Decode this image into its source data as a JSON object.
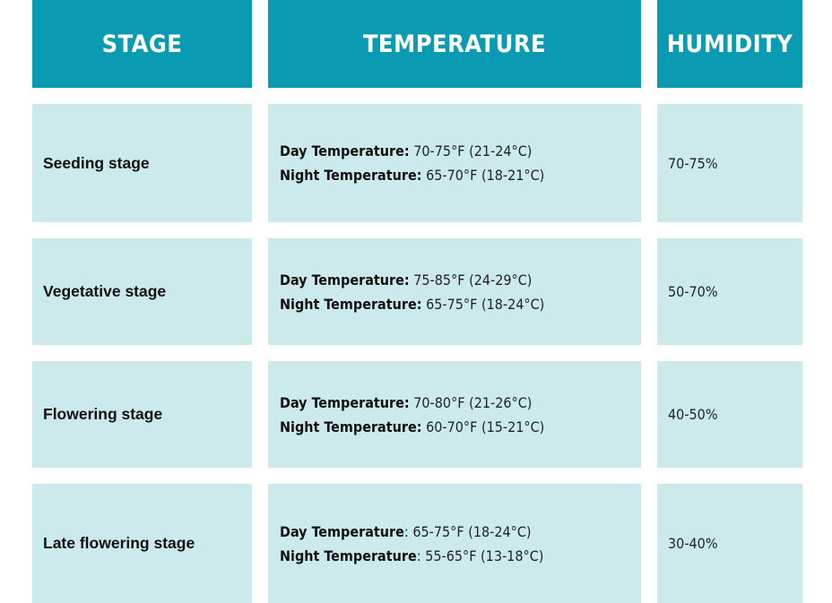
{
  "headers": {
    "stage": "STAGE",
    "temperature": "TEMPERATURE",
    "humidity": "HUMIDITY"
  },
  "rows": [
    {
      "stage": "Seeding stage",
      "day_label": "Day Temperature:",
      "day_value": " 70-75°F (21-24°C)",
      "night_label": "Night Temperature:",
      "night_value": " 65-70°F (18-21°C)",
      "humidity": "70-75%"
    },
    {
      "stage": "Vegetative stage",
      "day_label": "Day Temperature:",
      "day_value": " 75-85°F (24-29°C)",
      "night_label": "Night Temperature:",
      "night_value": " 65-75°F (18-24°C)",
      "humidity": "50-70%"
    },
    {
      "stage": "Flowering stage",
      "day_label": "Day Temperature:",
      "day_value": " 70-80°F (21-26°C)",
      "night_label": "Night Temperature:",
      "night_value": " 60-70°F (15-21°C)",
      "humidity": "40-50%"
    },
    {
      "stage": "Late flowering stage",
      "day_label": "Day Temperature",
      "day_value": ": 65-75°F (18-24°C)",
      "night_label": "Night Temperature",
      "night_value": ": 55-65°F (13-18°C)",
      "humidity": "30-40%"
    }
  ],
  "colors": {
    "header_bg": "#0a9ab1",
    "cell_bg": "#cceaeb"
  }
}
